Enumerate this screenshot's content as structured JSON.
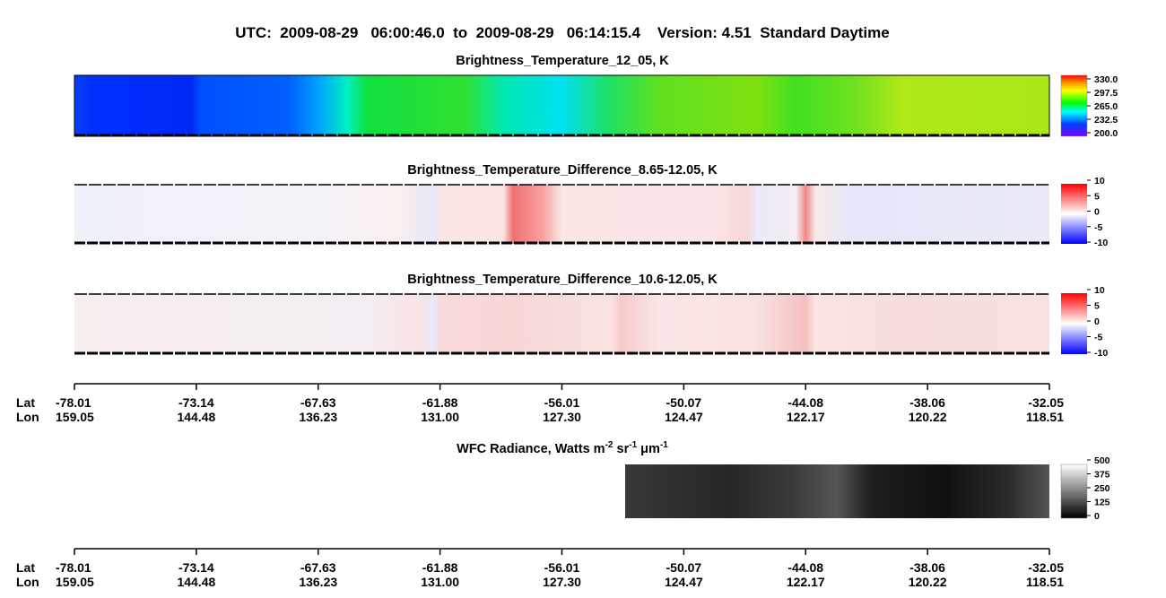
{
  "title": "UTC:  2009-08-29   06:00:46.0  to  2009-08-29   06:14:15.4    Version: 4.51  Standard Daytime",
  "panels": [
    {
      "title": "Brightness_Temperature_12_05, K",
      "colorbar": [
        "330.0",
        "297.5",
        "265.0",
        "232.5",
        "200.0"
      ]
    },
    {
      "title": "Brightness_Temperature_Difference_8.65-12.05, K",
      "colorbar": [
        "10",
        "5",
        "0",
        "-5",
        "-10"
      ]
    },
    {
      "title": "Brightness_Temperature_Difference_10.6-12.05, K",
      "colorbar": [
        "10",
        "5",
        "0",
        "-5",
        "-10"
      ]
    },
    {
      "title_parts": [
        "WFC Radiance, Watts m",
        "-2",
        " sr",
        "-1",
        " μm",
        "-1"
      ],
      "colorbar": [
        "500",
        "375",
        "250",
        "125",
        "0"
      ]
    }
  ],
  "axes": [
    {
      "lat_label": "Lat",
      "lon_label": "Lon",
      "lat": [
        "-78.01",
        "-73.14",
        "-67.63",
        "-61.88",
        "-56.01",
        "-50.07",
        "-44.08",
        "-38.06",
        "-32.05"
      ],
      "lon": [
        "159.05",
        "144.48",
        "136.23",
        "131.00",
        "127.30",
        "124.47",
        "122.17",
        "120.22",
        "118.51"
      ]
    },
    {
      "lat_label": "Lat",
      "lon_label": "Lon",
      "lat": [
        "-78.01",
        "-73.14",
        "-67.63",
        "-61.88",
        "-56.01",
        "-50.07",
        "-44.08",
        "-38.06",
        "-32.05"
      ],
      "lon": [
        "159.05",
        "144.48",
        "136.23",
        "131.00",
        "127.30",
        "124.47",
        "122.17",
        "120.22",
        "118.51"
      ]
    }
  ]
}
